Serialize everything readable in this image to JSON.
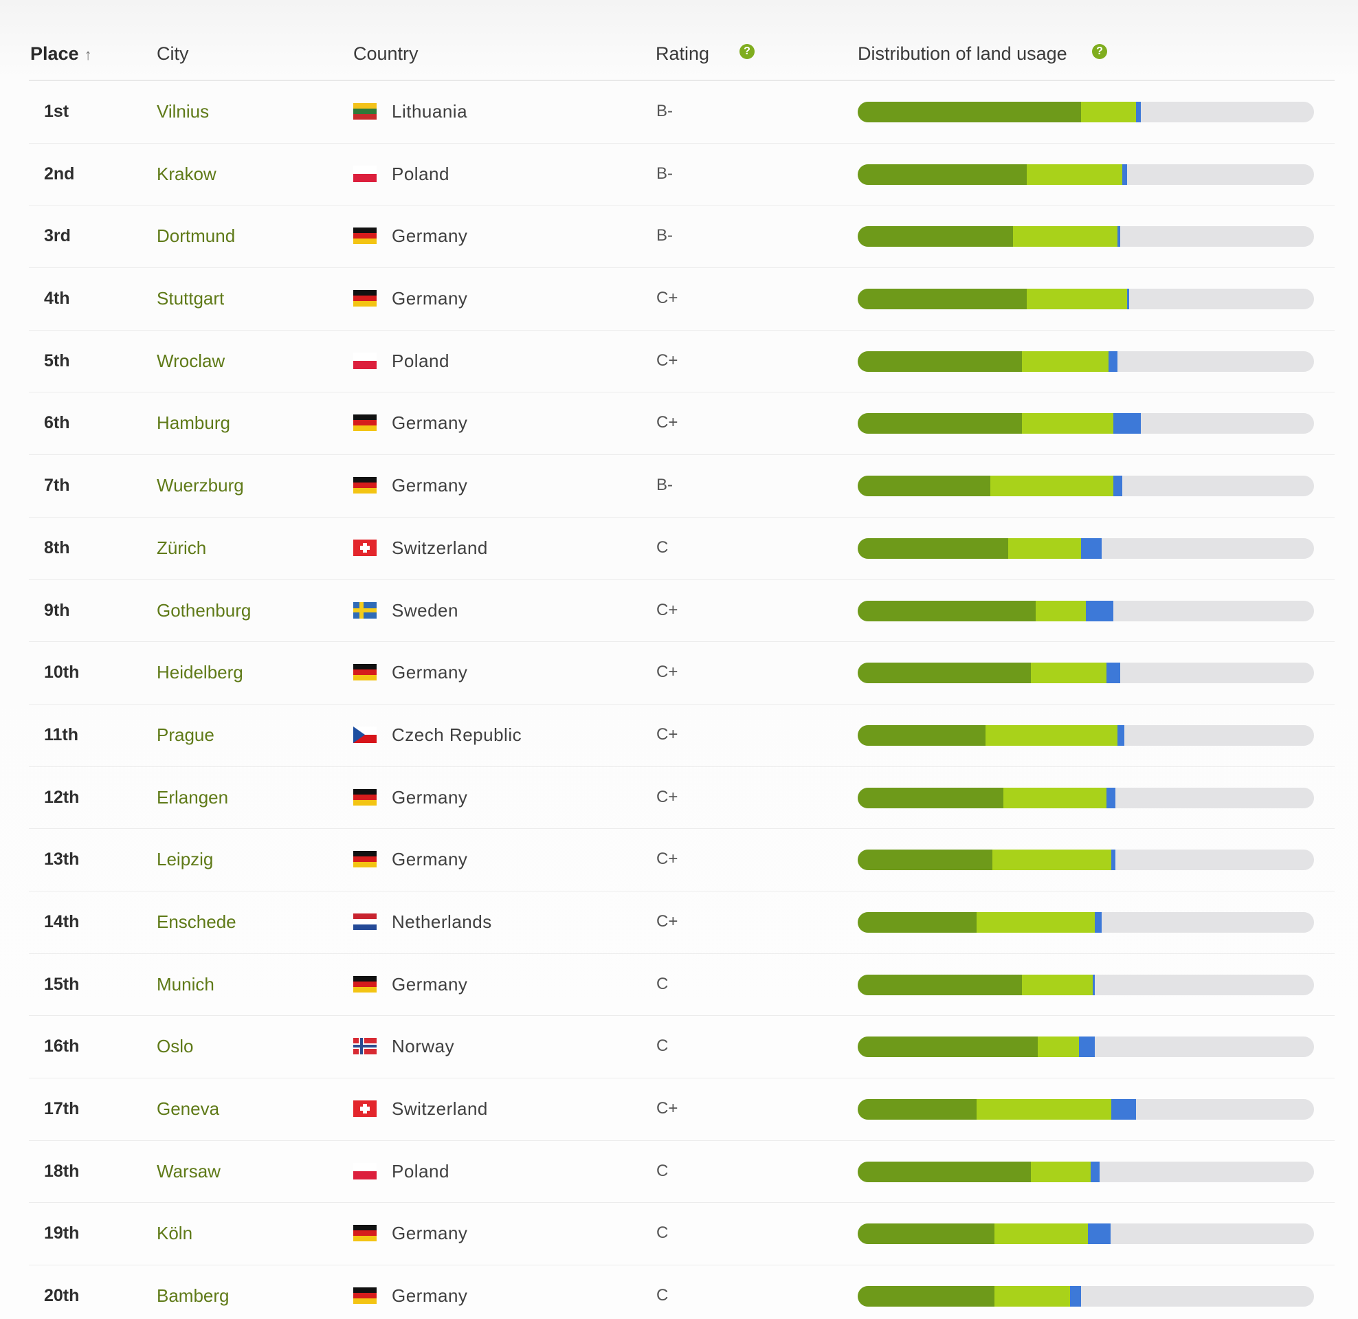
{
  "header": {
    "place": "Place",
    "place_arrow": "↑",
    "city": "City",
    "country": "Country",
    "rating": "Rating",
    "distribution": "Distribution of land usage",
    "help_icon": "question-circle-icon"
  },
  "colors": {
    "dark_green": "#6e9a1a",
    "light_green": "#a9d21a",
    "blue": "#3d79d8",
    "track": "#e3e3e5"
  },
  "rows": [
    {
      "place": "1st",
      "city": "Vilnius",
      "country": "Lithuania",
      "flag": "lt",
      "rating": "B-",
      "dist": [
        0.49,
        0.12,
        0.01
      ]
    },
    {
      "place": "2nd",
      "city": "Krakow",
      "country": "Poland",
      "flag": "pl",
      "rating": "B-",
      "dist": [
        0.37,
        0.21,
        0.01
      ]
    },
    {
      "place": "3rd",
      "city": "Dortmund",
      "country": "Germany",
      "flag": "de",
      "rating": "B-",
      "dist": [
        0.34,
        0.23,
        0.005
      ]
    },
    {
      "place": "4th",
      "city": "Stuttgart",
      "country": "Germany",
      "flag": "de",
      "rating": "C+",
      "dist": [
        0.37,
        0.22,
        0.005
      ]
    },
    {
      "place": "5th",
      "city": "Wroclaw",
      "country": "Poland",
      "flag": "pl",
      "rating": "C+",
      "dist": [
        0.36,
        0.19,
        0.02
      ]
    },
    {
      "place": "6th",
      "city": "Hamburg",
      "country": "Germany",
      "flag": "de",
      "rating": "C+",
      "dist": [
        0.36,
        0.2,
        0.06
      ]
    },
    {
      "place": "7th",
      "city": "Wuerzburg",
      "country": "Germany",
      "flag": "de",
      "rating": "B-",
      "dist": [
        0.29,
        0.27,
        0.02
      ]
    },
    {
      "place": "8th",
      "city": "Zürich",
      "country": "Switzerland",
      "flag": "ch",
      "rating": "C",
      "dist": [
        0.33,
        0.16,
        0.045
      ]
    },
    {
      "place": "9th",
      "city": "Gothenburg",
      "country": "Sweden",
      "flag": "se",
      "rating": "C+",
      "dist": [
        0.39,
        0.11,
        0.06
      ]
    },
    {
      "place": "10th",
      "city": "Heidelberg",
      "country": "Germany",
      "flag": "de",
      "rating": "C+",
      "dist": [
        0.38,
        0.165,
        0.03
      ]
    },
    {
      "place": "11th",
      "city": "Prague",
      "country": "Czech Republic",
      "flag": "cz",
      "rating": "C+",
      "dist": [
        0.28,
        0.29,
        0.015
      ]
    },
    {
      "place": "12th",
      "city": "Erlangen",
      "country": "Germany",
      "flag": "de",
      "rating": "C+",
      "dist": [
        0.32,
        0.225,
        0.02
      ]
    },
    {
      "place": "13th",
      "city": "Leipzig",
      "country": "Germany",
      "flag": "de",
      "rating": "C+",
      "dist": [
        0.295,
        0.26,
        0.01
      ]
    },
    {
      "place": "14th",
      "city": "Enschede",
      "country": "Netherlands",
      "flag": "nl",
      "rating": "C+",
      "dist": [
        0.26,
        0.26,
        0.015
      ]
    },
    {
      "place": "15th",
      "city": "Munich",
      "country": "Germany",
      "flag": "de",
      "rating": "C",
      "dist": [
        0.36,
        0.155,
        0.005
      ]
    },
    {
      "place": "16th",
      "city": "Oslo",
      "country": "Norway",
      "flag": "no",
      "rating": "C",
      "dist": [
        0.395,
        0.09,
        0.035
      ]
    },
    {
      "place": "17th",
      "city": "Geneva",
      "country": "Switzerland",
      "flag": "ch",
      "rating": "C+",
      "dist": [
        0.26,
        0.295,
        0.055
      ]
    },
    {
      "place": "18th",
      "city": "Warsaw",
      "country": "Poland",
      "flag": "pl",
      "rating": "C",
      "dist": [
        0.38,
        0.13,
        0.02
      ]
    },
    {
      "place": "19th",
      "city": "Köln",
      "country": "Germany",
      "flag": "de",
      "rating": "C",
      "dist": [
        0.3,
        0.205,
        0.05
      ]
    },
    {
      "place": "20th",
      "city": "Bamberg",
      "country": "Germany",
      "flag": "de",
      "rating": "C",
      "dist": [
        0.3,
        0.165,
        0.025
      ]
    }
  ]
}
